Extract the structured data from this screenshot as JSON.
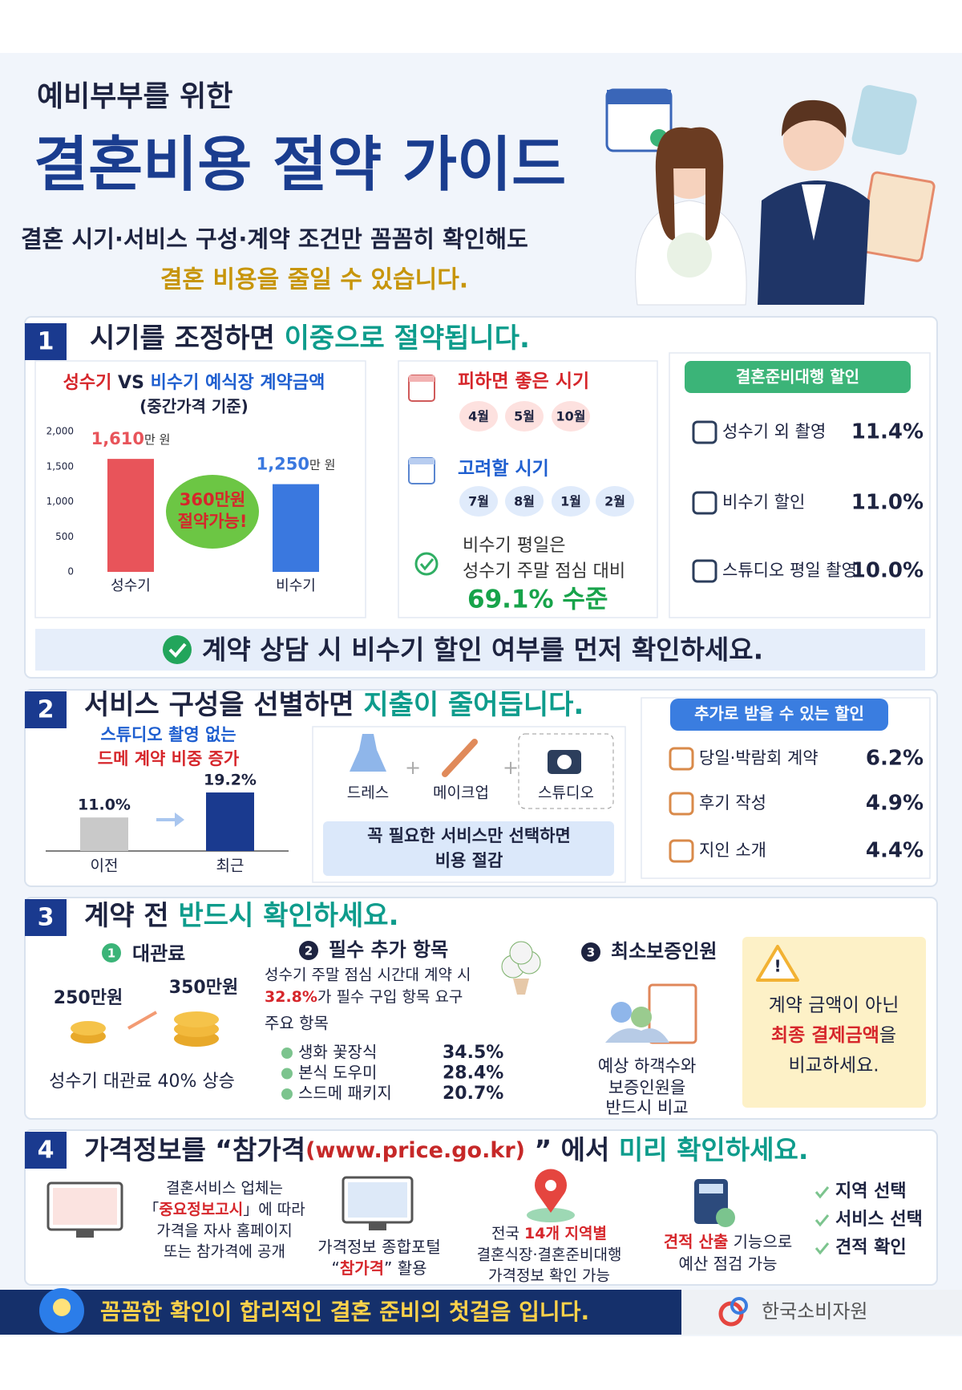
{
  "header": {
    "kicker": "예비부부를 위한",
    "title": "결혼비용 절약 가이드",
    "subtitle": "결혼 시기·서비스 구성·계약 조건만 꼼꼼히 확인해도",
    "highlight": "결혼 비용을 줄일 수 있습니다."
  },
  "section1": {
    "number": "1",
    "title": "시기를 조정하면 ",
    "title_highlight": "이중으로 절약됩니다.",
    "chart": {
      "type": "bar",
      "title_a": "성수기",
      "title_b": " VS ",
      "title_c": "비수기 예식장 계약금액",
      "subtitle": "(중간가격 기준)",
      "categories": [
        "성수기",
        "비수기"
      ],
      "values": [
        1610,
        1250
      ],
      "value_labels": [
        "1,610",
        "1,250"
      ],
      "unit": "만 원",
      "colors": [
        "#e8545a",
        "#3a78df"
      ],
      "ylim": [
        0,
        2000
      ],
      "yticks": [
        0,
        500,
        {
          "value": 1000,
          "label": "1,000"
        },
        {
          "value": 1500,
          "label": "1,500"
        },
        {
          "value": 2000,
          "label": "2,000"
        }
      ],
      "callout": [
        "360만원",
        "절약가능!"
      ]
    },
    "avoid": {
      "label": "피하면 좋은 시기",
      "months": [
        "4월",
        "5월",
        "10월"
      ]
    },
    "consider": {
      "label": "고려할 시기",
      "months": [
        "7월",
        "8월",
        "1월",
        "2월"
      ]
    },
    "note": [
      "비수기 평일은",
      "성수기 주말 점심 대비"
    ],
    "note_highlight": "69.1% 수준",
    "discount_badge": "결혼준비대행 할인",
    "discounts": [
      {
        "label": "성수기 외 촬영",
        "value": "11.4%"
      },
      {
        "label": "비수기 할인",
        "value": "11.0%"
      },
      {
        "label": "스튜디오 평일 촬영",
        "value": "10.0%"
      }
    ],
    "banner": "계약 상담 시 비수기 할인 여부를 먼저 확인하세요."
  },
  "section2": {
    "number": "2",
    "title": "서비스 구성을 선별하면 ",
    "title_highlight": "지출이 줄어듭니다.",
    "chart": {
      "type": "bar",
      "caption_a": "스튜디오 촬영 없는",
      "caption_b": "드메 계약 비중 증가",
      "categories": [
        "이전",
        "최근"
      ],
      "values": [
        11.0,
        19.2
      ],
      "value_labels": [
        "11.0%",
        "19.2%"
      ],
      "colors": [
        "#c9c9c9",
        "#1a3a8f"
      ]
    },
    "services": [
      "드레스",
      "메이크업",
      "스튜디오"
    ],
    "note": [
      "꼭 필요한 서비스만 선택하면",
      "비용 절감"
    ],
    "discount_badge": "추가로 받을 수 있는 할인",
    "discounts": [
      {
        "label": "당일·박람회 계약",
        "value": "6.2%"
      },
      {
        "label": "후기 작성",
        "value": "4.9%"
      },
      {
        "label": "지인 소개",
        "value": "4.4%"
      }
    ]
  },
  "section3": {
    "number": "3",
    "title": "계약 전 ",
    "title_highlight": "반드시 확인하세요.",
    "venue": {
      "num": "1",
      "label": "대관료",
      "from": "250만원",
      "to": "350만원",
      "caption": "성수기 대관료 40% 상승"
    },
    "extras": {
      "num": "2",
      "label": "필수 추가 항목",
      "line1": "성수기 주말 점심 시간대 계약 시",
      "pct": "32.8%",
      "line2": "가 필수 구입 항목 요구",
      "list_title": "주요 항목",
      "items": [
        {
          "label": "생화 꽃장식",
          "value": "34.5%"
        },
        {
          "label": "본식 도우미",
          "value": "28.4%"
        },
        {
          "label": "스드메 패키지",
          "value": "20.7%"
        }
      ]
    },
    "guests": {
      "num": "3",
      "label": "최소보증인원",
      "caption": [
        "예상 하객수와",
        "보증인원을",
        "반드시 비교"
      ]
    },
    "warning": {
      "line1": "계약 금액이 아닌",
      "highlight": "최종 결제금액",
      "after": "을",
      "line3": "비교하세요."
    }
  },
  "section4": {
    "number": "4",
    "title": "가격정보를 “참가격",
    "url": "(www.price.go.kr)",
    "title_after": " ” 에서 ",
    "title_highlight": "미리 확인하세요.",
    "item1": {
      "line1": "결혼서비스 업체는",
      "pre": "「",
      "red": "중요정보고시",
      "post": "」에 따라",
      "line3": "가격을 자사 홈페이지",
      "line4": "또는 참가격에 공개"
    },
    "item2": {
      "line1": "가격정보 종합포털",
      "pre": "“",
      "red": "참가격",
      "post": "” 활용"
    },
    "item3": {
      "pre": "전국 ",
      "red": "14개 지역별",
      "line2": "결혼식장·결혼준비대행",
      "line3": "가격정보 확인 가능"
    },
    "item4": {
      "red": "견적 산출",
      "post": " 기능으로",
      "line2": "예산 점검 가능"
    },
    "steps": [
      "지역 선택",
      "서비스 선택",
      "견적 확인"
    ]
  },
  "footer": {
    "message": "꼼꼼한 확인이 합리적인 결혼 준비의 첫걸음 입니다.",
    "org": "한국소비자원"
  }
}
